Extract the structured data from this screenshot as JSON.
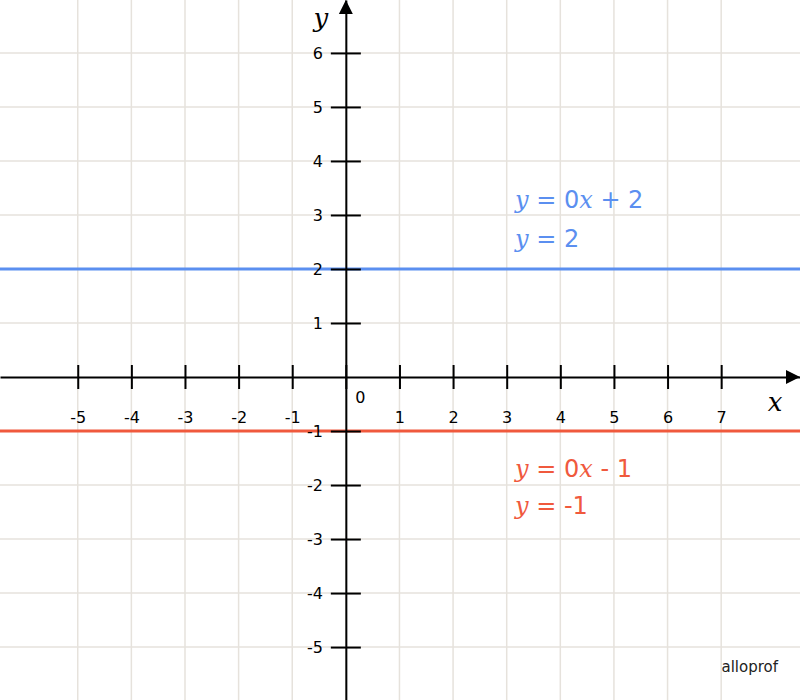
{
  "chart_data": {
    "type": "line",
    "xlabel": "x",
    "ylabel": "y",
    "credit": "alloprof",
    "x": [
      -6.45,
      8.47
    ],
    "xlim": [
      -6.45,
      8.47
    ],
    "ylim": [
      -5.98,
      6.98
    ],
    "xticks": [
      -5,
      -4,
      -3,
      -2,
      -1,
      0,
      1,
      2,
      3,
      4,
      5,
      6,
      7
    ],
    "yticks": [
      -5,
      -4,
      -3,
      -2,
      -1,
      1,
      2,
      3,
      4,
      5,
      6
    ],
    "grid": true,
    "series": [
      {
        "color": "#5b8ff0",
        "values": [
          2,
          2
        ],
        "annotations": [
          "y = 0x + 2",
          "y = 2"
        ]
      },
      {
        "color": "#f0593d",
        "values": [
          -1,
          -1
        ],
        "annotations": [
          "y = 0x - 1",
          "y = -1"
        ]
      }
    ]
  }
}
